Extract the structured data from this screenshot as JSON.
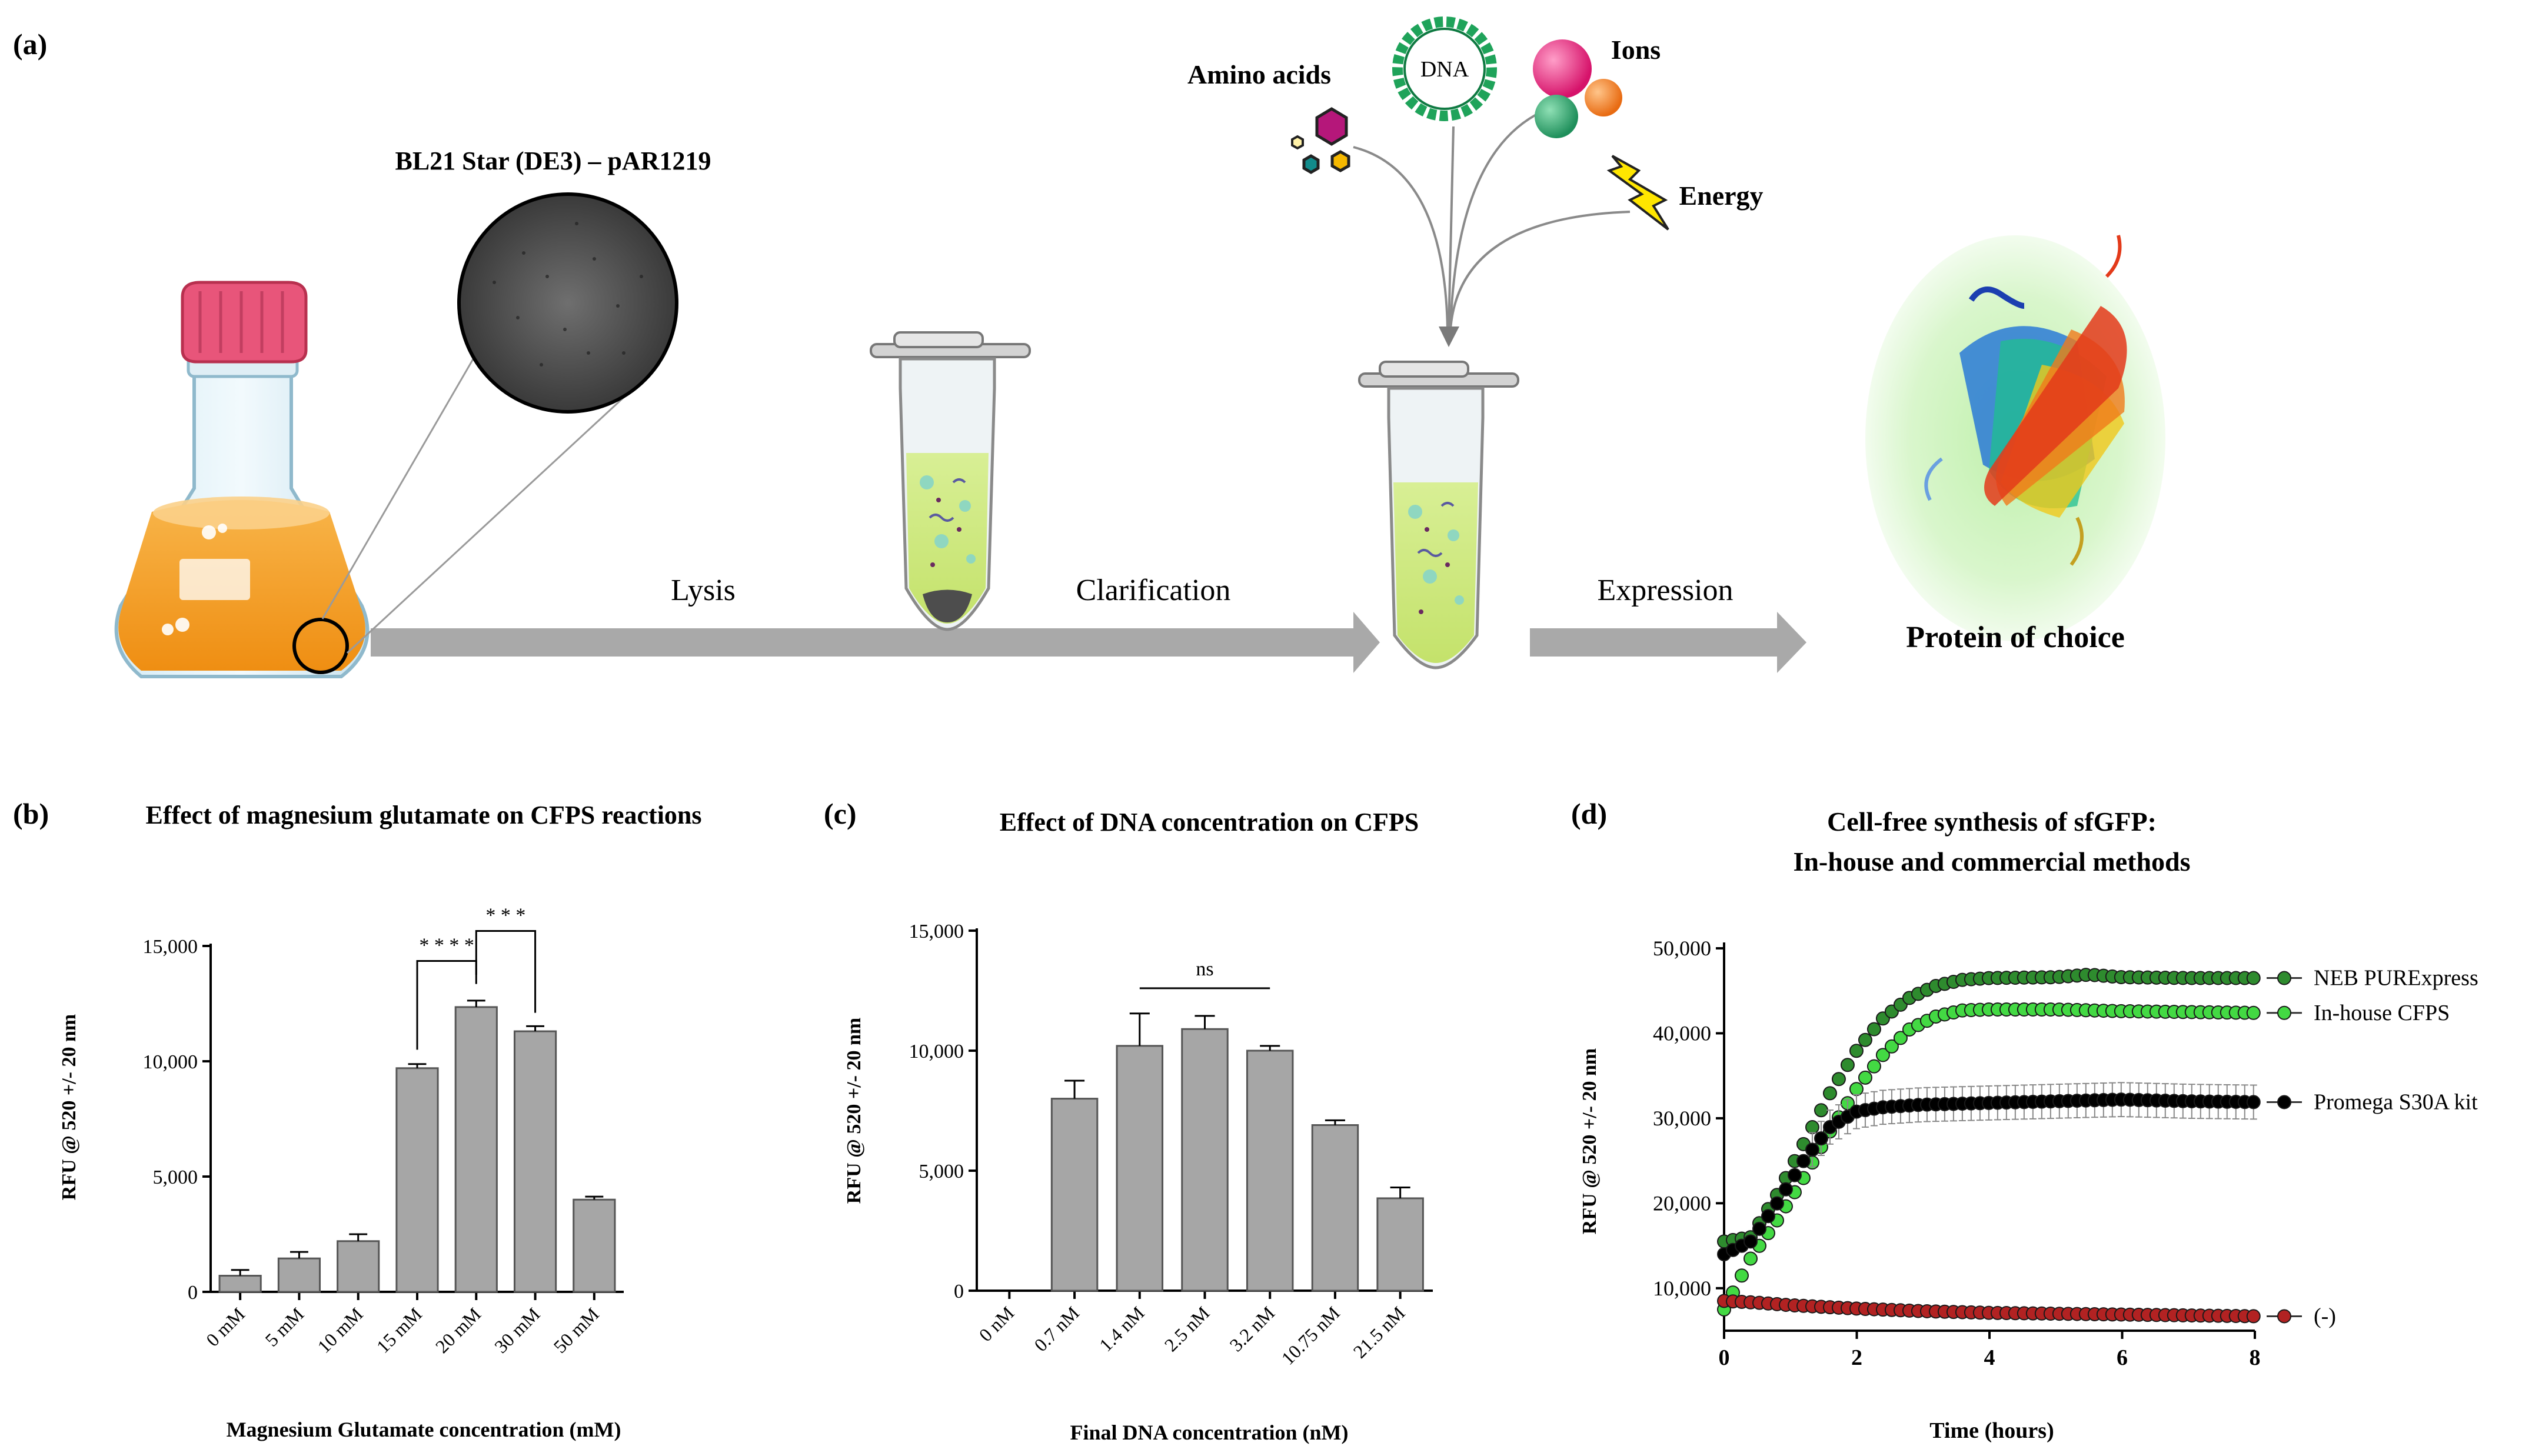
{
  "panel_a": {
    "label": "(a)",
    "strain_label": "BL21 Star (DE3) – pAR1219",
    "steps": [
      "Lysis",
      "Clarification",
      "Expression"
    ],
    "ingredients": [
      "Amino acids",
      "DNA",
      "Ions",
      "Energy"
    ],
    "product_label": "Protein of choice",
    "colors": {
      "culture": "#f39c1f",
      "cap": "#e8557a",
      "lysate": "#cfe98a",
      "arrow": "#a9a9a9"
    }
  },
  "chart_data": [
    {
      "panel": "(b)",
      "type": "bar",
      "title": "Effect of magnesium glutamate on CFPS reactions",
      "xlabel": "Magnesium Glutamate concentration (mM)",
      "ylabel": "RFU @ 520 +/- 20 nm",
      "ylim": [
        0,
        15000
      ],
      "yticks": [
        0,
        5000,
        10000,
        15000
      ],
      "ytick_labels": [
        "0",
        "5,000",
        "10,000",
        "15,000"
      ],
      "categories": [
        "0 mM",
        "5 mM",
        "10 mM",
        "15 mM",
        "20 mM",
        "30 mM",
        "50 mM"
      ],
      "values": [
        700,
        1450,
        2200,
        9700,
        12350,
        11300,
        4000
      ],
      "errors": [
        250,
        280,
        300,
        180,
        280,
        220,
        130
      ],
      "significance": [
        {
          "from": 3,
          "to": 4,
          "label": "* * * *"
        },
        {
          "from": 4,
          "to": 5,
          "label": "* * *"
        }
      ],
      "bar_color": "#a6a6a6"
    },
    {
      "panel": "(c)",
      "type": "bar",
      "title": "Effect of DNA concentration on CFPS",
      "xlabel": "Final DNA concentration (nM)",
      "ylabel": "RFU @ 520 +/- 20 nm",
      "ylim": [
        0,
        15000
      ],
      "yticks": [
        0,
        5000,
        10000,
        15000
      ],
      "ytick_labels": [
        "0",
        "5,000",
        "10,000",
        "15,000"
      ],
      "categories": [
        "0 nM",
        "0.7 nM",
        "1.4 nM",
        "2.5 nM",
        "3.2 nM",
        "10.75 nM",
        "21.5 nM"
      ],
      "values": [
        0,
        8000,
        10200,
        10900,
        10000,
        6900,
        3850
      ],
      "errors": [
        0,
        750,
        1350,
        550,
        200,
        200,
        450
      ],
      "significance": [
        {
          "from": 2,
          "to": 4,
          "label": "ns"
        }
      ],
      "bar_color": "#a6a6a6"
    },
    {
      "panel": "(d)",
      "type": "scatter",
      "title": [
        "Cell-free synthesis of sfGFP:",
        "In-house and commercial methods"
      ],
      "xlabel": "Time (hours)",
      "ylabel": "RFU @ 520 +/- 20 nm",
      "xlim": [
        0,
        8
      ],
      "xticks": [
        0,
        2,
        4,
        6,
        8
      ],
      "ylim": [
        5000,
        50000
      ],
      "yticks": [
        10000,
        20000,
        30000,
        40000,
        50000
      ],
      "ytick_labels": [
        "10,000",
        "20,000",
        "30,000",
        "40,000",
        "50,000"
      ],
      "legend_position": "right",
      "series": [
        {
          "name": "NEB PURExpress",
          "color": "#2e8b2e",
          "x": [
            0,
            0.4,
            0.8,
            1.2,
            1.6,
            2.0,
            2.4,
            2.8,
            3.2,
            3.6,
            4.0,
            5.0,
            5.5,
            6.0,
            7.0,
            8.0
          ],
          "y": [
            15500,
            16000,
            21000,
            27000,
            33000,
            38000,
            41800,
            44200,
            45600,
            46300,
            46500,
            46600,
            46900,
            46600,
            46500,
            46500
          ]
        },
        {
          "name": "In-house CFPS",
          "color": "#43d943",
          "x": [
            0,
            0.4,
            0.8,
            1.2,
            1.6,
            2.0,
            2.4,
            2.8,
            3.2,
            3.6,
            4.0,
            5.0,
            6.0,
            7.0,
            8.0
          ],
          "y": [
            7500,
            13500,
            18000,
            23000,
            28500,
            33500,
            37500,
            40500,
            42000,
            42700,
            42800,
            42800,
            42600,
            42500,
            42400
          ]
        },
        {
          "name": "Promega S30A kit",
          "color": "#000000",
          "x": [
            0,
            0.4,
            0.8,
            1.2,
            1.6,
            2.0,
            2.4,
            3.0,
            4.0,
            5.0,
            6.0,
            7.0,
            8.0
          ],
          "y": [
            14000,
            15500,
            20000,
            25000,
            29000,
            30800,
            31300,
            31600,
            31800,
            32000,
            32200,
            32000,
            31900
          ],
          "error": 2000
        },
        {
          "name": "(-)",
          "color": "#b22222",
          "x": [
            0,
            0.5,
            1,
            2,
            3,
            4,
            5,
            6,
            7,
            8
          ],
          "y": [
            8500,
            8300,
            8000,
            7600,
            7300,
            7100,
            7000,
            6900,
            6800,
            6700
          ]
        }
      ]
    }
  ]
}
